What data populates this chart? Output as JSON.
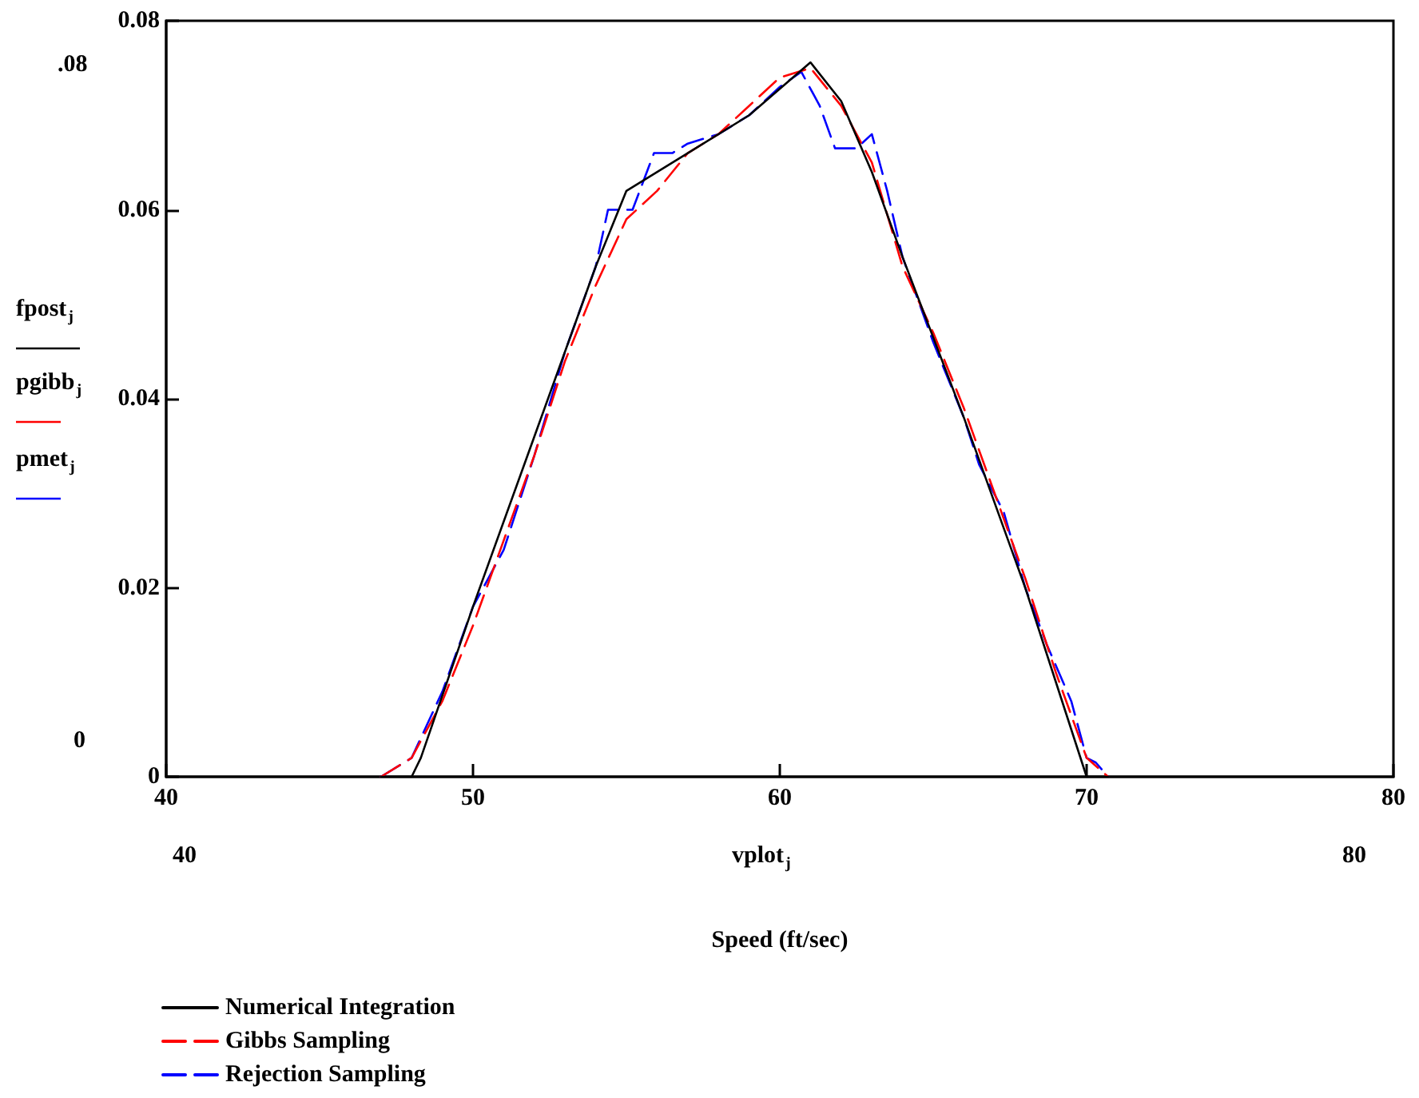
{
  "chart_data": {
    "type": "line",
    "xlabel": "Speed (ft/sec)",
    "annotations": [
      ".08",
      "0",
      "40",
      "80",
      "vplot$_{j}$",
      "fpost$_{j}$",
      "pgibb$_{j}$",
      "pmet$_{j}$"
    ],
    "xlim": [
      40,
      80
    ],
    "xticks": [
      40,
      50,
      60,
      70,
      80
    ],
    "ylim": [
      0,
      0.08
    ],
    "yticks": [
      0,
      0.02,
      0.04,
      0.06,
      0.08
    ],
    "legend": "bottom left",
    "grid": false,
    "series": [
      {
        "name": "Numerical Integration",
        "color": "#000000",
        "line_style": "solid",
        "x": [
          47,
          48,
          48.3,
          50,
          52,
          54,
          55,
          57,
          59,
          61,
          62,
          63,
          64,
          66,
          68,
          69,
          70,
          70.7
        ],
        "values": [
          0,
          0,
          0.002,
          0.018,
          0.036,
          0.054,
          0.062,
          0.066,
          0.07,
          0.0756,
          0.0715,
          0.064,
          0.055,
          0.038,
          0.02,
          0.01,
          0,
          0
        ]
      },
      {
        "name": "Gibbs Sampling",
        "color": "#ff0000",
        "line_style": "dashed",
        "x": [
          47,
          48,
          49,
          50,
          51,
          52,
          53,
          54,
          55,
          56,
          57,
          58,
          59,
          60,
          61,
          62,
          63,
          64,
          65,
          66,
          67,
          68,
          69,
          70,
          70.7
        ],
        "values": [
          0,
          0.002,
          0.008,
          0.016,
          0.025,
          0.034,
          0.044,
          0.052,
          0.059,
          0.062,
          0.066,
          0.068,
          0.071,
          0.074,
          0.075,
          0.071,
          0.065,
          0.054,
          0.047,
          0.039,
          0.03,
          0.021,
          0.011,
          0.002,
          0
        ]
      },
      {
        "name": "Rejection Sampling",
        "color": "#0000ff",
        "line_style": "dashed",
        "x": [
          47,
          48,
          49,
          50,
          51,
          52,
          53,
          54,
          54.4,
          55.2,
          55.9,
          56.5,
          57,
          58,
          59,
          60,
          60.7,
          61.3,
          61.8,
          62.5,
          63,
          63.5,
          64,
          65,
          66,
          66.5,
          67.3,
          68,
          68.7,
          69.5,
          70,
          70.3,
          70.7
        ],
        "values": [
          0,
          0.002,
          0.009,
          0.018,
          0.024,
          0.034,
          0.045,
          0.054,
          0.06,
          0.06,
          0.066,
          0.066,
          0.067,
          0.068,
          0.07,
          0.073,
          0.0746,
          0.071,
          0.0665,
          0.0665,
          0.068,
          0.062,
          0.055,
          0.046,
          0.038,
          0.033,
          0.028,
          0.02,
          0.014,
          0.008,
          0.002,
          0.0015,
          0
        ]
      }
    ]
  }
}
